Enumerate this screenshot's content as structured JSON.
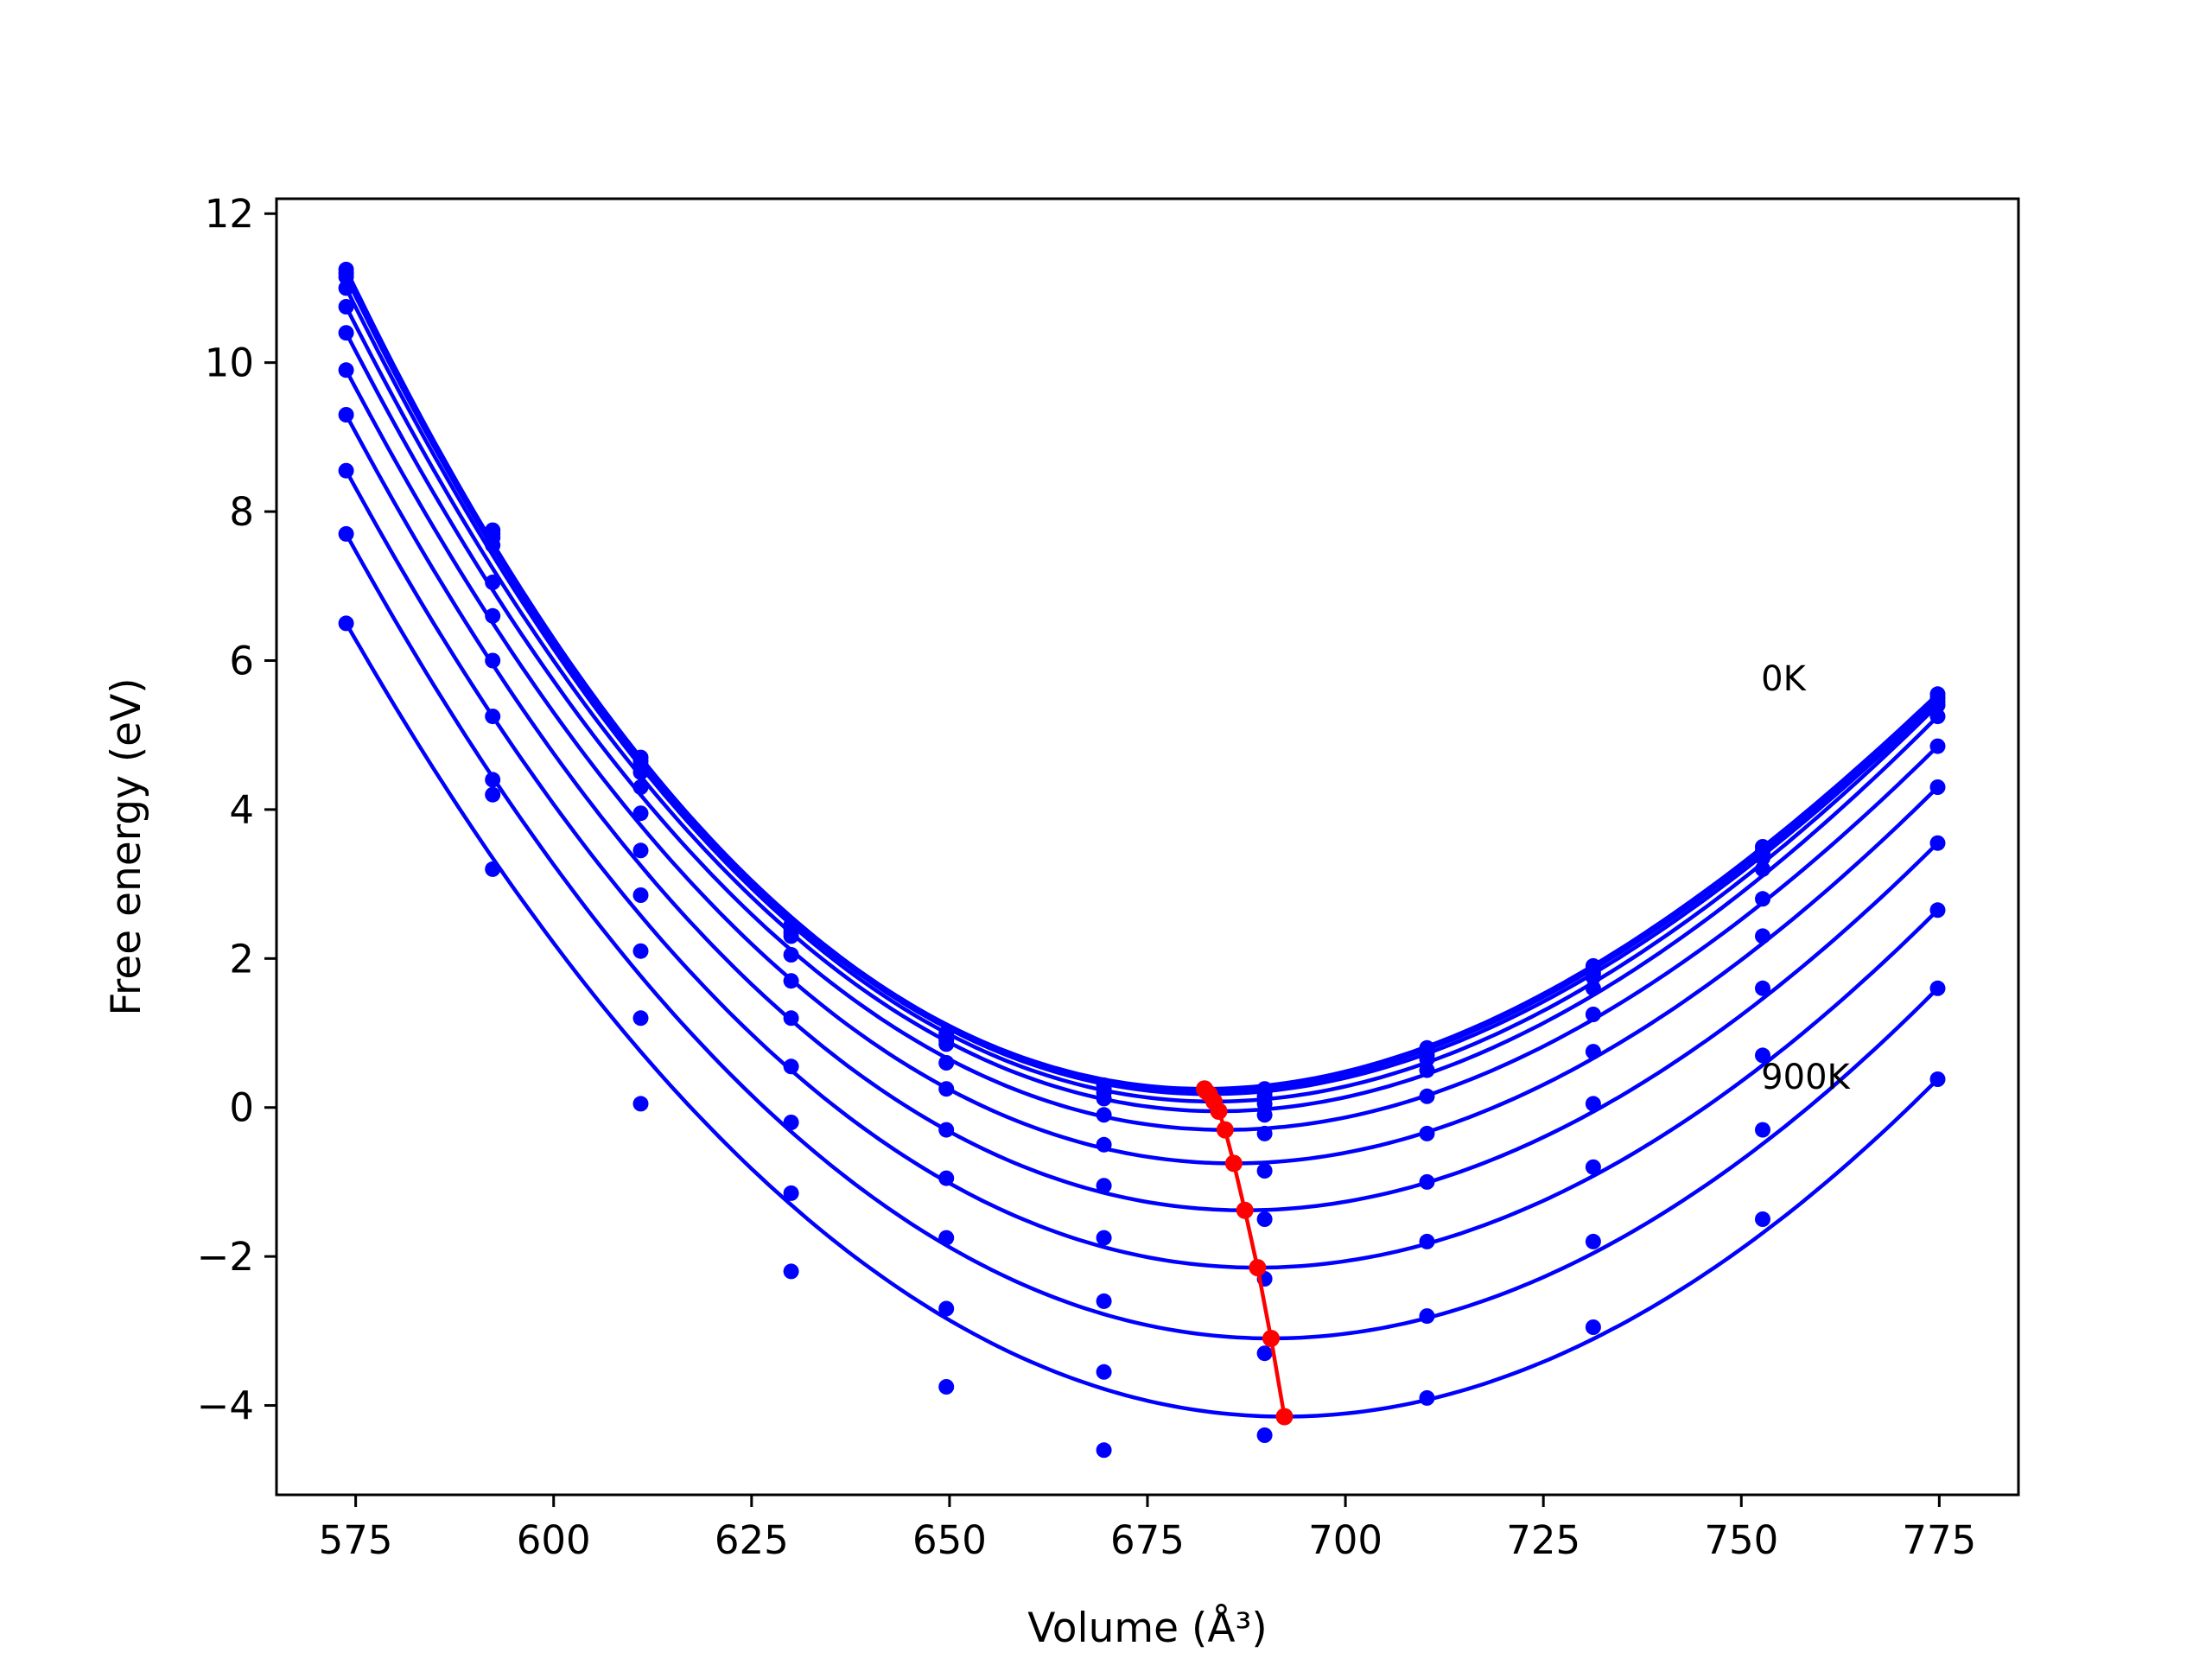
{
  "chart_data": {
    "type": "line",
    "xlabel": "Volume (Å³)",
    "ylabel": "Free energy (eV)",
    "xlim": [
      565,
      785
    ],
    "ylim": [
      -5.2,
      12.2
    ],
    "xticks": [
      575,
      600,
      625,
      650,
      675,
      700,
      725,
      750,
      775
    ],
    "yticks": [
      -4,
      -2,
      0,
      2,
      4,
      6,
      8,
      10,
      12
    ],
    "ytick_labels": [
      "−4",
      "−2",
      "0",
      "2",
      "4",
      "6",
      "8",
      "10",
      "12"
    ],
    "grid": false,
    "annotations": [
      {
        "text": "0K",
        "x": 752.5,
        "y": 5.6
      },
      {
        "text": "900K",
        "x": 752.5,
        "y": 0.25
      }
    ],
    "curve_color": "#0000ff",
    "min_line_color": "#ff0000",
    "volumes": [
      573.8,
      592.3,
      611.0,
      630.0,
      649.6,
      669.5,
      689.8,
      710.3,
      731.3,
      752.7,
      774.8
    ],
    "series": [
      {
        "min_v": 682.2,
        "min_f": 0.25,
        "points": [
          11.25,
          7.75,
          4.7,
          2.45,
          1.0,
          0.3,
          0.25,
          0.8,
          1.9,
          3.5,
          5.55
        ]
      },
      {
        "min_v": 682.4,
        "min_f": 0.22,
        "points": [
          11.2,
          7.7,
          4.65,
          2.4,
          0.95,
          0.25,
          0.2,
          0.75,
          1.85,
          3.45,
          5.5
        ]
      },
      {
        "min_v": 682.8,
        "min_f": 0.18,
        "points": [
          11.15,
          7.65,
          4.6,
          2.35,
          0.9,
          0.2,
          0.15,
          0.7,
          1.8,
          3.4,
          5.45
        ]
      },
      {
        "min_v": 683.4,
        "min_f": 0.08,
        "points": [
          11.0,
          7.55,
          4.5,
          2.3,
          0.85,
          0.12,
          0.05,
          0.65,
          1.75,
          3.35,
          5.4
        ]
      },
      {
        "min_v": 684.0,
        "min_f": -0.05,
        "points": [
          10.75,
          7.05,
          4.3,
          2.05,
          0.6,
          -0.1,
          -0.1,
          0.5,
          1.6,
          3.2,
          5.25
        ]
      },
      {
        "min_v": 684.8,
        "min_f": -0.3,
        "points": [
          10.4,
          6.6,
          3.95,
          1.7,
          0.25,
          -0.5,
          -0.35,
          0.15,
          1.25,
          2.8,
          4.85
        ]
      },
      {
        "min_v": 685.9,
        "min_f": -0.75,
        "points": [
          9.9,
          6.0,
          3.45,
          1.2,
          -0.3,
          -1.05,
          -0.85,
          -0.35,
          0.75,
          2.3,
          4.3
        ]
      },
      {
        "min_v": 687.3,
        "min_f": -1.38,
        "points": [
          9.3,
          5.25,
          2.85,
          0.55,
          -0.95,
          -1.75,
          -1.5,
          -1.0,
          0.05,
          1.6,
          3.55
        ]
      },
      {
        "min_v": 688.9,
        "min_f": -2.15,
        "points": [
          8.55,
          4.4,
          2.1,
          -0.2,
          -1.75,
          -2.6,
          -2.3,
          -1.8,
          -0.8,
          0.7,
          2.65
        ]
      },
      {
        "min_v": 690.6,
        "min_f": -3.1,
        "points": [
          7.7,
          4.2,
          1.2,
          -1.15,
          -2.7,
          -3.55,
          -3.3,
          -2.8,
          -1.8,
          -0.3,
          1.6
        ]
      },
      {
        "min_v": 692.3,
        "min_f": -4.15,
        "points": [
          6.5,
          3.2,
          0.05,
          -2.2,
          -3.75,
          -4.6,
          -4.4,
          -3.9,
          -2.95,
          -1.5,
          0.38
        ]
      }
    ]
  }
}
